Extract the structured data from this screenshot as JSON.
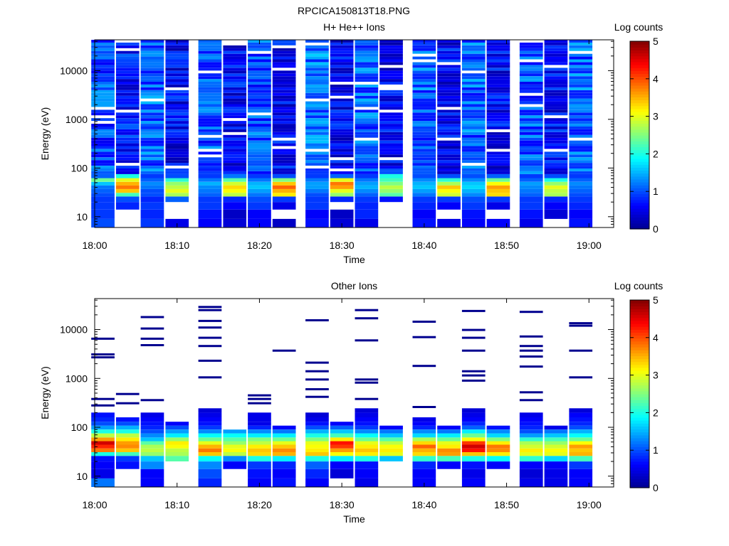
{
  "figure_title": "RPCICA150813T18.PNG",
  "colormap": [
    "#00008f",
    "#0000ff",
    "#0080ff",
    "#00ffff",
    "#80ff80",
    "#ffff00",
    "#ff8000",
    "#ff0000",
    "#800000"
  ],
  "chart_data": [
    {
      "type": "heatmap",
      "title": "H+ He++ Ions",
      "xlabel": "Time",
      "ylabel": "Energy (eV)",
      "colorbar_label": "Log counts",
      "colorbar_range": [
        0,
        5
      ],
      "colorbar_ticks": [
        "0",
        "1",
        "2",
        "3",
        "4",
        "5"
      ],
      "y_scale": "log",
      "ylim": [
        6,
        43000
      ],
      "yticks": [
        {
          "value": 10,
          "label": "10"
        },
        {
          "value": 100,
          "label": "100"
        },
        {
          "value": 1000,
          "label": "1000"
        },
        {
          "value": 10000,
          "label": "10000"
        }
      ],
      "xlim": [
        "18:00",
        "19:03"
      ],
      "xticks": [
        "18:00",
        "18:10",
        "18:20",
        "18:30",
        "18:40",
        "18:50",
        "19:00"
      ],
      "time_bins": [
        "18:01",
        "18:04",
        "18:07",
        "18:10",
        "18:14",
        "18:17",
        "18:20",
        "18:23",
        "18:27",
        "18:30",
        "18:33",
        "18:36",
        "18:40",
        "18:43",
        "18:46",
        "18:49",
        "18:53",
        "18:56",
        "18:59"
      ],
      "energy_bins": [
        {
          "lo": 6,
          "hi": 9,
          "values": [
            1.0,
            0.0,
            0.9,
            0.5,
            0.6,
            0.4,
            0.6,
            0.3,
            0.7,
            0.4,
            0.5,
            0.0,
            0.7,
            0.5,
            0.6,
            0.6,
            0.5,
            0.0,
            0.7
          ]
        },
        {
          "lo": 9,
          "hi": 14,
          "values": [
            0.9,
            0.0,
            0.8,
            0.0,
            0.7,
            0.3,
            0.6,
            0.0,
            0.6,
            0.3,
            0.8,
            0.0,
            0.6,
            0.0,
            0.7,
            0.0,
            0.7,
            0.4,
            0.6
          ]
        },
        {
          "lo": 14,
          "hi": 20,
          "values": [
            0.9,
            0.8,
            0.9,
            0.0,
            0.9,
            0.6,
            0.9,
            0.5,
            0.9,
            0.0,
            0.8,
            0.0,
            0.8,
            0.6,
            0.9,
            0.5,
            0.9,
            0.6,
            0.8
          ]
        },
        {
          "lo": 20,
          "hi": 26,
          "values": [
            0.9,
            1.0,
            0.8,
            1.1,
            0.9,
            0.8,
            1.0,
            0.9,
            0.9,
            0.8,
            0.9,
            0.7,
            0.9,
            0.9,
            1.0,
            0.9,
            0.9,
            0.8,
            0.9
          ]
        },
        {
          "lo": 26,
          "hi": 31,
          "values": [
            1.0,
            2.2,
            1.0,
            2.7,
            1.1,
            2.8,
            1.2,
            3.2,
            1.0,
            2.6,
            1.1,
            2.3,
            1.2,
            2.9,
            1.3,
            3.3,
            1.1,
            2.7,
            1.0
          ]
        },
        {
          "lo": 31,
          "hi": 37,
          "values": [
            1.1,
            3.4,
            1.0,
            3.0,
            1.2,
            3.1,
            1.4,
            3.5,
            1.2,
            3.0,
            1.3,
            2.6,
            1.4,
            3.1,
            1.5,
            3.4,
            1.2,
            2.8,
            1.1
          ]
        },
        {
          "lo": 37,
          "hi": 44,
          "values": [
            1.2,
            3.8,
            1.2,
            2.8,
            1.3,
            3.3,
            1.6,
            3.9,
            1.4,
            3.6,
            1.5,
            2.8,
            1.6,
            3.4,
            1.7,
            3.6,
            1.3,
            3.0,
            1.2
          ]
        },
        {
          "lo": 44,
          "hi": 52,
          "values": [
            1.6,
            3.5,
            1.3,
            2.6,
            1.5,
            2.9,
            1.5,
            3.4,
            1.4,
            3.8,
            1.4,
            2.5,
            1.5,
            2.7,
            1.6,
            3.1,
            1.4,
            2.6,
            1.3
          ]
        },
        {
          "lo": 52,
          "hi": 62,
          "values": [
            2.4,
            3.0,
            1.1,
            2.1,
            1.2,
            2.3,
            1.2,
            2.5,
            1.2,
            3.0,
            1.2,
            2.2,
            1.3,
            2.1,
            1.3,
            2.4,
            1.1,
            2.0,
            1.1
          ]
        },
        {
          "lo": 62,
          "hi": 75,
          "values": [
            1.1,
            2.0,
            0.9,
            1.0,
            0.9,
            1.2,
            0.9,
            1.0,
            0.9,
            1.1,
            0.9,
            2.0,
            1.0,
            1.0,
            1.0,
            1.1,
            0.9,
            1.0,
            0.9
          ]
        }
      ],
      "high_energy": {
        "lo": 75,
        "hi": 43000,
        "rows": 48,
        "base_levels": [
          1.0,
          0.7,
          1.1,
          0.6,
          1.0,
          0.6,
          1.0,
          0.6,
          1.2,
          0.6,
          1.1,
          0.6,
          1.1,
          0.6,
          1.1,
          0.6,
          1.0,
          0.6,
          1.1
        ]
      }
    },
    {
      "type": "heatmap",
      "title": "Other Ions",
      "xlabel": "Time",
      "ylabel": "Energy (eV)",
      "colorbar_label": "Log counts",
      "colorbar_range": [
        0,
        5
      ],
      "colorbar_ticks": [
        "0",
        "1",
        "2",
        "3",
        "4",
        "5"
      ],
      "y_scale": "log",
      "ylim": [
        6,
        43000
      ],
      "yticks": [
        {
          "value": 10,
          "label": "10"
        },
        {
          "value": 100,
          "label": "100"
        },
        {
          "value": 1000,
          "label": "1000"
        },
        {
          "value": 10000,
          "label": "10000"
        }
      ],
      "xlim": [
        "18:00",
        "19:03"
      ],
      "xticks": [
        "18:00",
        "18:10",
        "18:20",
        "18:30",
        "18:40",
        "18:50",
        "19:00"
      ],
      "time_bins": [
        "18:01",
        "18:04",
        "18:07",
        "18:10",
        "18:14",
        "18:17",
        "18:20",
        "18:23",
        "18:27",
        "18:30",
        "18:33",
        "18:36",
        "18:40",
        "18:43",
        "18:46",
        "18:49",
        "18:53",
        "18:56",
        "18:59"
      ],
      "energy_bins": [
        {
          "lo": 6,
          "hi": 9,
          "values": [
            1.2,
            0.0,
            0.6,
            0.0,
            0.8,
            0.0,
            0.6,
            0.7,
            0.6,
            0.0,
            0.5,
            0.0,
            0.6,
            0.0,
            0.6,
            0.0,
            0.5,
            0.5,
            0.6
          ]
        },
        {
          "lo": 9,
          "hi": 14,
          "values": [
            0.5,
            0.0,
            0.6,
            0.0,
            1.0,
            0.0,
            0.7,
            0.6,
            0.8,
            0.4,
            0.6,
            0.0,
            0.6,
            0.0,
            0.5,
            0.0,
            0.4,
            0.5,
            0.6
          ]
        },
        {
          "lo": 14,
          "hi": 20,
          "values": [
            0.6,
            0.7,
            1.3,
            0.0,
            1.3,
            0.6,
            0.9,
            0.8,
            1.1,
            0.6,
            0.7,
            0.0,
            0.8,
            0.6,
            0.7,
            0.6,
            0.6,
            0.6,
            0.9
          ]
        },
        {
          "lo": 20,
          "hi": 26,
          "values": [
            0.7,
            0.9,
            1.6,
            2.3,
            1.9,
            1.3,
            2.0,
            1.8,
            2.0,
            1.8,
            2.0,
            1.6,
            2.1,
            2.2,
            2.0,
            1.9,
            2.1,
            1.7,
            2.2
          ]
        },
        {
          "lo": 26,
          "hi": 31,
          "values": [
            2.0,
            2.2,
            2.6,
            2.7,
            3.4,
            2.8,
            3.3,
            3.5,
            3.4,
            3.1,
            3.2,
            3.0,
            3.3,
            3.6,
            3.4,
            3.2,
            3.0,
            3.0,
            3.5
          ]
        },
        {
          "lo": 31,
          "hi": 37,
          "values": [
            3.8,
            3.4,
            2.8,
            2.8,
            3.8,
            3.1,
            3.4,
            3.7,
            3.2,
            3.6,
            3.4,
            3.2,
            3.5,
            3.7,
            4.3,
            3.7,
            3.2,
            3.1,
            3.4
          ]
        },
        {
          "lo": 37,
          "hi": 44,
          "values": [
            4.2,
            3.7,
            2.7,
            3.1,
            3.5,
            3.0,
            3.2,
            3.4,
            3.1,
            4.1,
            3.2,
            3.1,
            3.9,
            3.2,
            4.6,
            3.8,
            2.9,
            2.9,
            3.6
          ]
        },
        {
          "lo": 44,
          "hi": 52,
          "values": [
            4.6,
            3.6,
            2.3,
            3.2,
            3.0,
            2.6,
            2.8,
            3.0,
            3.0,
            4.3,
            3.0,
            2.8,
            3.3,
            3.0,
            4.1,
            3.2,
            2.7,
            2.6,
            3.1
          ]
        },
        {
          "lo": 52,
          "hi": 62,
          "values": [
            3.6,
            3.2,
            1.6,
            2.6,
            2.4,
            2.3,
            2.5,
            2.4,
            2.5,
            3.2,
            2.4,
            2.3,
            2.7,
            2.4,
            3.1,
            2.5,
            2.1,
            2.2,
            2.4
          ]
        },
        {
          "lo": 62,
          "hi": 75,
          "values": [
            2.8,
            2.8,
            1.3,
            1.8,
            1.9,
            1.9,
            1.8,
            1.8,
            2.0,
            2.2,
            1.9,
            1.6,
            1.7,
            1.8,
            2.4,
            1.7,
            1.4,
            1.6,
            1.9
          ]
        },
        {
          "lo": 75,
          "hi": 90,
          "values": [
            2.0,
            2.0,
            1.0,
            1.4,
            1.3,
            1.4,
            1.3,
            1.2,
            1.5,
            1.6,
            1.3,
            1.2,
            1.3,
            1.2,
            1.8,
            1.3,
            1.0,
            1.2,
            1.5
          ]
        },
        {
          "lo": 90,
          "hi": 108,
          "values": [
            1.4,
            1.5,
            0.8,
            1.0,
            0.9,
            0.0,
            0.8,
            0.6,
            1.0,
            1.1,
            0.9,
            0.6,
            0.8,
            0.6,
            1.1,
            0.7,
            0.8,
            0.5,
            1.0
          ]
        },
        {
          "lo": 108,
          "hi": 130,
          "values": [
            1.0,
            1.0,
            0.7,
            0.6,
            0.7,
            0.0,
            0.5,
            0.0,
            0.7,
            0.6,
            0.7,
            0.0,
            0.6,
            0.0,
            0.8,
            0.0,
            0.7,
            0.0,
            0.8
          ]
        },
        {
          "lo": 130,
          "hi": 160,
          "values": [
            0.8,
            0.7,
            0.6,
            0.0,
            0.6,
            0.0,
            0.5,
            0.0,
            0.5,
            0.0,
            0.6,
            0.0,
            0.5,
            0.0,
            0.6,
            0.0,
            0.6,
            0.0,
            0.7
          ]
        },
        {
          "lo": 160,
          "hi": 200,
          "values": [
            0.7,
            0.0,
            0.5,
            0.0,
            0.5,
            0.0,
            0.5,
            0.0,
            0.4,
            0.0,
            0.5,
            0.0,
            0.0,
            0.0,
            0.5,
            0.0,
            0.5,
            0.0,
            0.6
          ]
        },
        {
          "lo": 200,
          "hi": 245,
          "values": [
            0.0,
            0.0,
            0.0,
            0.0,
            0.4,
            0.0,
            0.0,
            0.0,
            0.0,
            0.0,
            0.4,
            0.0,
            0.0,
            0.0,
            0.4,
            0.0,
            0.0,
            0.0,
            0.4
          ]
        }
      ],
      "lines": [
        {
          "bin": 0,
          "energies": [
            6500,
            3100,
            2700,
            380,
            280
          ]
        },
        {
          "bin": 1,
          "energies": [
            480,
            310
          ]
        },
        {
          "bin": 2,
          "energies": [
            18000,
            10500,
            6500,
            4800,
            360
          ]
        },
        {
          "bin": 4,
          "energies": [
            29000,
            25000,
            15000,
            11000,
            6800,
            4600,
            2300,
            1050
          ]
        },
        {
          "bin": 6,
          "energies": [
            450,
            380,
            310
          ]
        },
        {
          "bin": 8,
          "energies": [
            15500,
            2100,
            1400,
            950,
            600,
            420
          ]
        },
        {
          "bin": 10,
          "energies": [
            25000,
            17000,
            6000,
            950,
            820,
            380
          ]
        },
        {
          "bin": 12,
          "energies": [
            14500,
            7000,
            1800,
            260
          ]
        },
        {
          "bin": 14,
          "energies": [
            24000,
            9800,
            6800,
            3700,
            1400,
            1150,
            900
          ]
        },
        {
          "bin": 16,
          "energies": [
            23000,
            7200,
            4600,
            3700,
            2800,
            1750,
            520,
            360
          ]
        },
        {
          "bin": 18,
          "energies": [
            13500,
            12000,
            3700,
            1050
          ]
        },
        {
          "bin": 7,
          "energies": [
            3700
          ]
        }
      ]
    }
  ]
}
